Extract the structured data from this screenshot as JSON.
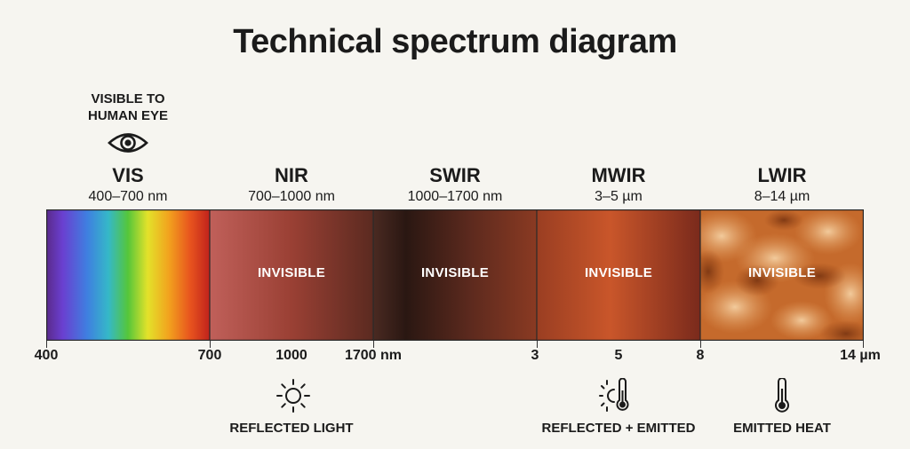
{
  "title": "Technical spectrum diagram",
  "visible_note": {
    "line1": "VISIBLE TO",
    "line2": "HUMAN EYE"
  },
  "bands": [
    {
      "name": "VIS",
      "range": "400–700 nm",
      "overlay": ""
    },
    {
      "name": "NIR",
      "range": "700–1000 nm",
      "overlay": "INVISIBLE"
    },
    {
      "name": "SWIR",
      "range": "1000–1700 nm",
      "overlay": "INVISIBLE"
    },
    {
      "name": "MWIR",
      "range": "3–5 µm",
      "overlay": "INVISIBLE"
    },
    {
      "name": "LWIR",
      "range": "8–14 µm",
      "overlay": "INVISIBLE"
    }
  ],
  "ticks": [
    "400",
    "700",
    "1000",
    "1700 nm",
    "3",
    "5",
    "8",
    "14 µm"
  ],
  "captions": {
    "reflected": "REFLECTED LIGHT",
    "reflected_emitted": "REFLECTED + EMITTED",
    "emitted": "EMITTED HEAT"
  },
  "icons": {
    "eye": "eye-icon",
    "reflected": "sun-icon",
    "reflected_emitted": "sun-thermometer-icon",
    "emitted": "thermometer-icon"
  }
}
